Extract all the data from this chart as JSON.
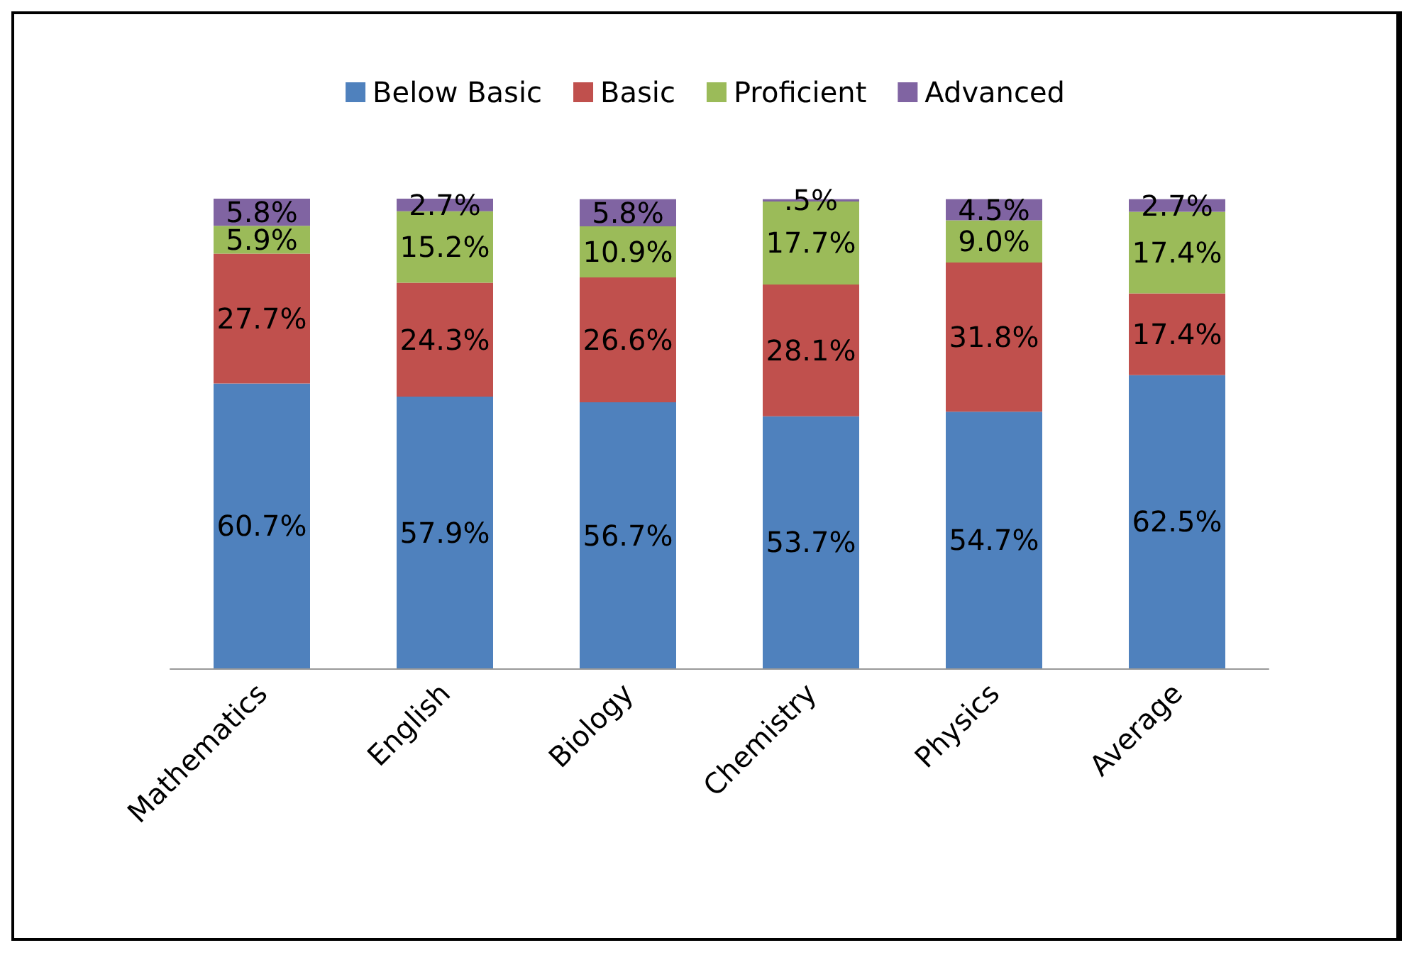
{
  "chart_data": {
    "type": "bar",
    "stacked": true,
    "legend": "top",
    "categories": [
      "Mathematics",
      "English",
      "Biology",
      "Chemistry",
      "Physics",
      "Average"
    ],
    "series": [
      {
        "name": "Below Basic",
        "color": "#4f81bd",
        "values": [
          60.7,
          57.9,
          56.7,
          53.7,
          54.7,
          62.5
        ],
        "value_labels": [
          "60.7%",
          "57.9%",
          "56.7%",
          "53.7%",
          "54.7%",
          "62.5%"
        ]
      },
      {
        "name": "Basic",
        "color": "#c0504d",
        "values": [
          27.7,
          24.3,
          26.6,
          28.1,
          31.8,
          17.4
        ],
        "value_labels": [
          "27.7%",
          "24.3%",
          "26.6%",
          "28.1%",
          "31.8%",
          "17.4%"
        ]
      },
      {
        "name": "Proficient",
        "color": "#9bbb59",
        "values": [
          5.9,
          15.2,
          10.9,
          17.7,
          9.0,
          17.4
        ],
        "value_labels": [
          "5.9%",
          "15.2%",
          "10.9%",
          "17.7%",
          "9.0%",
          "17.4%"
        ]
      },
      {
        "name": "Advanced",
        "color": "#8064a2",
        "values": [
          5.8,
          2.7,
          5.8,
          0.5,
          4.5,
          2.7
        ],
        "value_labels": [
          "5.8%",
          "2.7%",
          "5.8%",
          ".5%",
          "4.5%",
          "2.7%"
        ]
      }
    ]
  }
}
